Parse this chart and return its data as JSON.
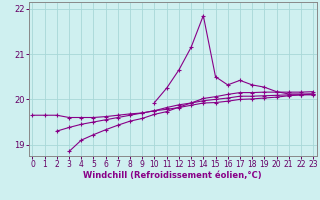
{
  "xlabel": "Windchill (Refroidissement éolien,°C)",
  "bg_color": "#cff0f0",
  "grid_color": "#a8d8d8",
  "line_color": "#880088",
  "x": [
    0,
    1,
    2,
    3,
    4,
    5,
    6,
    7,
    8,
    9,
    10,
    11,
    12,
    13,
    14,
    15,
    16,
    17,
    18,
    19,
    20,
    21,
    22,
    23
  ],
  "series": [
    [
      19.65,
      19.65,
      19.65,
      19.6,
      19.6,
      19.6,
      19.62,
      19.65,
      19.68,
      19.7,
      19.75,
      19.78,
      19.82,
      19.87,
      19.92,
      19.93,
      19.96,
      20.0,
      20.01,
      20.03,
      20.05,
      20.08,
      20.1,
      20.1
    ],
    [
      null,
      null,
      19.3,
      19.38,
      19.45,
      19.5,
      19.55,
      19.6,
      19.65,
      19.7,
      19.75,
      19.82,
      19.88,
      19.92,
      19.97,
      20.0,
      20.03,
      20.07,
      20.07,
      20.08,
      20.09,
      20.1,
      20.1,
      20.12
    ],
    [
      null,
      null,
      null,
      18.85,
      19.1,
      19.22,
      19.33,
      19.43,
      19.52,
      19.58,
      19.67,
      19.73,
      19.83,
      19.92,
      20.02,
      20.06,
      20.11,
      20.15,
      20.15,
      20.16,
      20.16,
      20.16,
      20.16,
      20.17
    ],
    [
      null,
      null,
      null,
      null,
      null,
      null,
      null,
      null,
      null,
      null,
      19.93,
      20.25,
      20.65,
      21.15,
      21.85,
      20.5,
      20.32,
      20.42,
      20.32,
      20.27,
      20.17,
      20.12,
      20.12,
      20.12
    ]
  ],
  "ylim": [
    18.75,
    22.15
  ],
  "yticks": [
    19,
    20,
    21,
    22
  ],
  "xticks": [
    0,
    1,
    2,
    3,
    4,
    5,
    6,
    7,
    8,
    9,
    10,
    11,
    12,
    13,
    14,
    15,
    16,
    17,
    18,
    19,
    20,
    21,
    22,
    23
  ],
  "xlabel_fontsize": 6,
  "tick_fontsize": 5.5,
  "figsize": [
    3.2,
    2.0
  ],
  "dpi": 100
}
